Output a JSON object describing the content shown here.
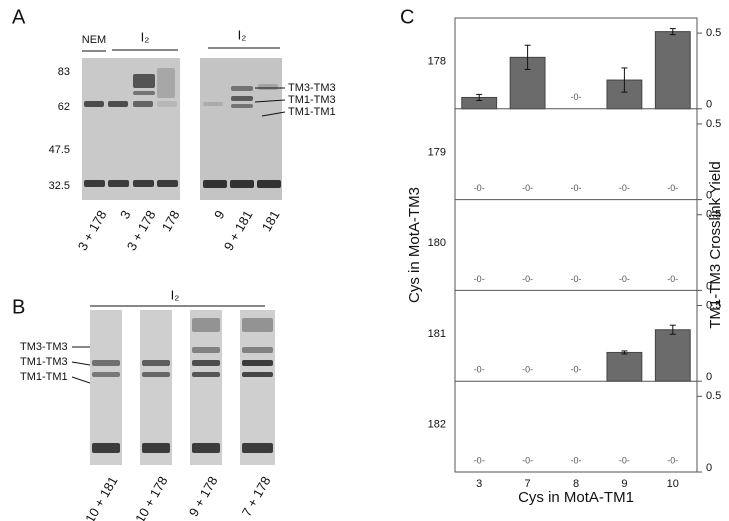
{
  "panels": {
    "A": {
      "letter": "A",
      "nem": "NEM",
      "oxidant_left": "I₂",
      "oxidant_right": "I₂",
      "markers": [
        83,
        62,
        47.5,
        32.5
      ],
      "lanes": [
        "3 + 178",
        "3",
        "3 + 178",
        "178",
        "9",
        "9 + 181",
        "181"
      ],
      "band_labels": [
        "TM3-TM3",
        "TM1-TM3",
        "TM1-TM1"
      ]
    },
    "B": {
      "letter": "B",
      "oxidant": "I₂",
      "lanes": [
        "10 + 181",
        "10 + 178",
        "9 + 178",
        "7 + 178"
      ],
      "band_labels": [
        "TM3-TM3",
        "TM1-TM3",
        "TM1-TM1"
      ]
    }
  },
  "chart_data": {
    "type": "bar",
    "panel_label": "C",
    "x_label": "Cys in MotA-TM1",
    "y_label": "Cys in MotA-TM3",
    "y2_label": "TM1-TM3 Crosslink  Yield",
    "categories": [
      3,
      7,
      8,
      9,
      10
    ],
    "color": "#6b6b6b",
    "ylim": [
      0,
      0.6
    ],
    "yticks": [
      0,
      0.5
    ],
    "axis_side": "right",
    "rows": [
      {
        "name": "178",
        "values": [
          0.075,
          0.34,
          0,
          0.19,
          0.51
        ],
        "errors": [
          0.02,
          0.08,
          0,
          0.08,
          0.02
        ],
        "value_labels": [
          null,
          null,
          "-0-",
          null,
          null
        ]
      },
      {
        "name": "179",
        "values": [
          0,
          0,
          0,
          0,
          0
        ],
        "value_labels": [
          "-0-",
          "-0-",
          "-0-",
          "-0-",
          "-0-"
        ]
      },
      {
        "name": "180",
        "values": [
          0,
          0,
          0,
          0,
          0
        ],
        "value_labels": [
          "-0-",
          "-0-",
          "-0-",
          "-0-",
          "-0-"
        ]
      },
      {
        "name": "181",
        "values": [
          0,
          0,
          0,
          0.19,
          0.34
        ],
        "errors": [
          0,
          0,
          0,
          0.01,
          0.03
        ],
        "value_labels": [
          "-0-",
          "-0-",
          "-0-",
          null,
          null
        ]
      },
      {
        "name": "182",
        "values": [
          0,
          0,
          0,
          0,
          0
        ],
        "value_labels": [
          "-0-",
          "-0-",
          "-0-",
          "-0-",
          "-0-"
        ]
      }
    ]
  }
}
